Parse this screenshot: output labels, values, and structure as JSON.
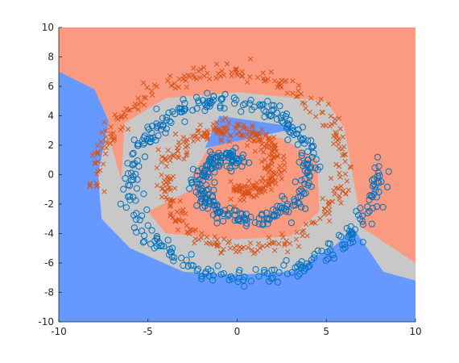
{
  "chart_data": {
    "type": "scatter",
    "title": "",
    "xlabel": "",
    "ylabel": "",
    "xlim": [
      -10,
      10
    ],
    "ylim": [
      -10,
      10
    ],
    "x_ticks": [
      "-10",
      "-5",
      "0",
      "5",
      "10"
    ],
    "y_ticks": [
      "10",
      "8",
      "6",
      "4",
      "2",
      "0",
      "-2",
      "-4",
      "-6",
      "-8",
      "-10"
    ],
    "grid": false,
    "legend": "none",
    "decision_regions": [
      {
        "class": "orange",
        "color": "#fa9a80",
        "polygons": [
          [
            [
              -10,
              10
            ],
            [
              10,
              10
            ],
            [
              10,
              -6.0
            ],
            [
              7.0,
              -3.6
            ],
            [
              6.0,
              3.2
            ],
            [
              5.0,
              5.0
            ],
            [
              0,
              5.6
            ],
            [
              -4.0,
              5.2
            ],
            [
              -6.3,
              3.5
            ],
            [
              -6.5,
              -0.3
            ],
            [
              -8.0,
              5.8
            ],
            [
              -10,
              7.0
            ]
          ],
          [
            [
              -2.5,
              0
            ],
            [
              -1.5,
              2.0
            ],
            [
              0,
              2.7
            ],
            [
              2.5,
              2.5
            ],
            [
              4.5,
              1.0
            ],
            [
              4.6,
              -2.5
            ],
            [
              3.0,
              -4.2
            ],
            [
              0,
              -4.4
            ],
            [
              -4.0,
              -4.0
            ],
            [
              -5.0,
              -2.5
            ],
            [
              -2.5,
              -1.0
            ]
          ]
        ]
      },
      {
        "class": "blue",
        "color": "#6699ff",
        "polygons": [
          [
            [
              -10,
              7.0
            ],
            [
              -8.0,
              5.8
            ],
            [
              -7.2,
              3.6
            ],
            [
              -7.8,
              0
            ],
            [
              -7.6,
              -3.0
            ],
            [
              -6.0,
              -5.0
            ],
            [
              -3.0,
              -6.6
            ],
            [
              0,
              -6.8
            ],
            [
              3.0,
              -6.6
            ],
            [
              5.5,
              -4.8
            ],
            [
              6.5,
              -3.6
            ],
            [
              8.2,
              -6.6
            ],
            [
              10,
              -7.2
            ],
            [
              10,
              -10
            ],
            [
              -10,
              -10
            ]
          ],
          [
            [
              -1.8,
              1.8
            ],
            [
              3.5,
              3.2
            ],
            [
              -1.0,
              4.0
            ]
          ]
        ]
      }
    ],
    "series": [
      {
        "class": "blue",
        "marker": "circle",
        "color": "#0072bd",
        "spiral": {
          "theta_start": 1.5,
          "theta_end": 12.7,
          "radius_per_radian": 0.63,
          "phase": 0,
          "noise": 0.3,
          "count": 580
        }
      },
      {
        "class": "orange",
        "marker": "x",
        "color": "#d95319",
        "spiral": {
          "theta_start": 1.5,
          "theta_end": 12.7,
          "radius_per_radian": 0.63,
          "phase": 3.14159,
          "noise": 0.3,
          "count": 580
        }
      }
    ]
  }
}
